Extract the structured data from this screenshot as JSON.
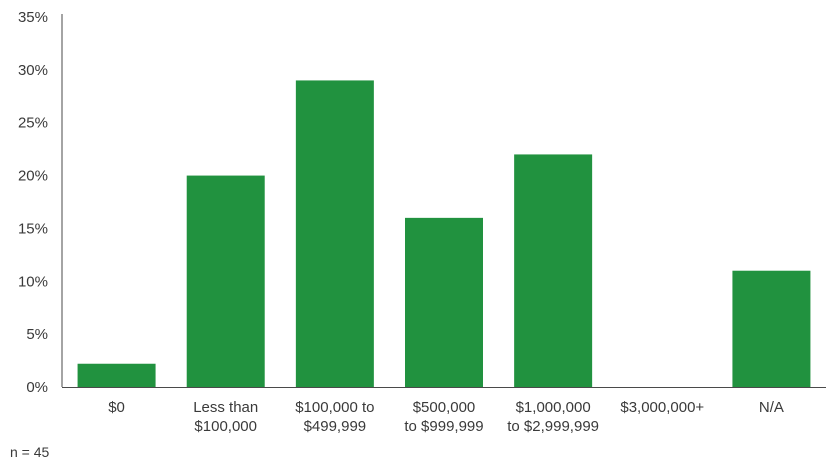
{
  "chart_data": {
    "type": "bar",
    "categories": [
      [
        "$0"
      ],
      [
        "Less than",
        "$100,000"
      ],
      [
        "$100,000 to",
        "$499,999"
      ],
      [
        "$500,000",
        "to $999,999"
      ],
      [
        "$1,000,000",
        "to $2,999,999"
      ],
      [
        "$3,000,000+"
      ],
      [
        "N/A"
      ]
    ],
    "values": [
      2.2,
      20.0,
      29.0,
      16.0,
      22.0,
      0,
      11.0
    ],
    "ylim": [
      0,
      35
    ],
    "yticks": [
      0,
      5,
      10,
      15,
      20,
      25,
      30,
      35
    ],
    "ytick_labels": [
      "0%",
      "5%",
      "10%",
      "15%",
      "20%",
      "25%",
      "30%",
      "35%"
    ],
    "bar_color": "#21923f",
    "grid": false,
    "title": "",
    "xlabel": "",
    "ylabel": ""
  },
  "note": "n = 45"
}
